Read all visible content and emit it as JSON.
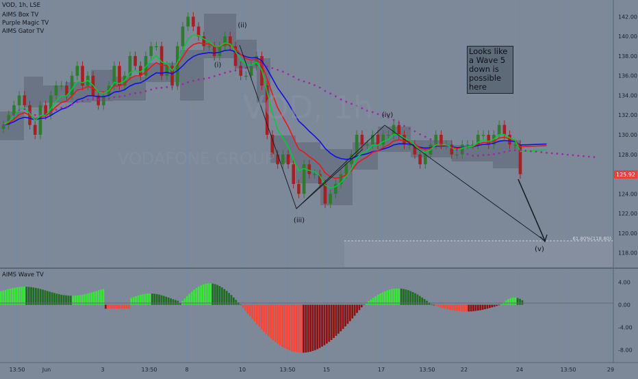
{
  "header": {
    "symbol_line": "VOD, 1h, LSE",
    "indicators": [
      "AIMS Box TV",
      "Purple Magic TV",
      "AIMS Gator TV"
    ],
    "lower_pane_title": "AIMS Wave TV"
  },
  "watermark": {
    "symbol": "VOD, 1h",
    "company": "VODAFONE GROUP"
  },
  "annotation_note": "Looks like a Wave 5 down is possible here",
  "price_badge": "125.92",
  "fib_label": "61.80%(118.80)",
  "colors": {
    "background": "#7d8898",
    "bull_candle": "#2f7a2f",
    "bear_candle": "#a52020",
    "ma_green": "#00cc33",
    "ma_red": "#e81818",
    "ma_blue": "#1010e0",
    "purple_dots": "#9a2aa8",
    "box": "#5b6474",
    "hist_lime": "#38e838",
    "hist_dark_green": "#1f6b1f",
    "hist_red": "#ff4436",
    "hist_dark_red": "#8c1010",
    "badge": "#e8403a"
  },
  "chart_data": [
    {
      "type": "candlestick",
      "title": "VOD, 1h, LSE",
      "y_axis_ticks": [
        118,
        120,
        122,
        124,
        126,
        128,
        130,
        132,
        134,
        136,
        138,
        140,
        142
      ],
      "ylim": [
        117,
        143
      ],
      "x_axis_ticks": [
        "13:50",
        "Jun",
        "3",
        "13:50",
        "8",
        "10",
        "13:50",
        "15",
        "17",
        "13:50",
        "22",
        "24",
        "13:50",
        "29"
      ],
      "last_price": 125.92,
      "close_series": [
        131,
        132,
        133,
        134,
        133,
        131,
        130,
        133,
        132,
        134,
        135,
        135,
        134,
        136,
        137,
        135,
        136,
        134,
        133,
        134,
        135,
        137,
        135,
        136,
        138,
        137,
        136,
        138,
        139,
        139,
        136,
        137,
        135,
        139,
        141,
        142,
        141,
        140,
        139,
        139,
        138,
        139,
        140,
        139,
        137,
        136,
        136,
        137,
        138,
        135,
        130,
        128,
        127,
        128,
        127,
        125,
        124,
        127,
        126,
        126,
        125,
        123,
        124,
        125,
        126,
        127,
        128,
        130,
        129,
        129,
        130,
        129,
        130,
        130,
        131,
        130,
        129,
        129,
        128,
        127,
        128,
        129,
        130,
        129,
        129,
        128,
        128,
        129,
        129,
        129,
        130,
        130,
        129,
        130,
        131,
        130,
        129,
        129,
        126
      ],
      "wave_labels": [
        "(ii)",
        "(iii)",
        "(iv)",
        "(v)",
        "(i)"
      ],
      "fib_level": {
        "label": "61.80%(118.80)",
        "value": 118.8
      }
    },
    {
      "type": "bar",
      "title": "AIMS Wave TV",
      "y_axis_ticks": [
        "4.00",
        "0.00",
        "-4.00",
        "-8.00"
      ],
      "ylim": [
        -10,
        6
      ]
    }
  ]
}
